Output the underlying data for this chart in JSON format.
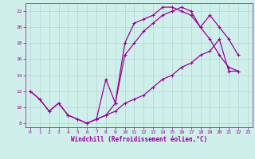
{
  "xlabel": "Windchill (Refroidissement éolien,°C)",
  "bg_color": "#cff0ea",
  "line_color": "#990099",
  "grid_color": "#aacccc",
  "xlim": [
    -0.5,
    23.5
  ],
  "ylim": [
    7.5,
    23
  ],
  "xticks": [
    0,
    1,
    2,
    3,
    4,
    5,
    6,
    7,
    8,
    9,
    10,
    11,
    12,
    13,
    14,
    15,
    16,
    17,
    18,
    19,
    20,
    21,
    22,
    23
  ],
  "yticks": [
    8,
    10,
    12,
    14,
    16,
    18,
    20,
    22
  ],
  "series1_x": [
    0,
    1,
    2,
    3,
    4,
    5,
    6,
    7,
    8,
    9,
    10,
    11,
    12,
    13,
    14,
    15,
    16,
    17,
    18,
    19,
    20,
    21,
    22
  ],
  "series1_y": [
    12,
    11,
    9.5,
    10.5,
    9.0,
    8.5,
    8.0,
    8.5,
    9.0,
    10.5,
    18.0,
    20.5,
    21.0,
    21.5,
    22.5,
    22.5,
    22.0,
    21.5,
    20.0,
    18.5,
    16.5,
    15.0,
    14.5
  ],
  "series2_x": [
    0,
    1,
    2,
    3,
    4,
    5,
    6,
    7,
    8,
    9,
    10,
    11,
    12,
    13,
    14,
    15,
    16,
    17,
    18,
    19,
    20,
    21,
    22
  ],
  "series2_y": [
    12,
    11,
    9.5,
    10.5,
    9.0,
    8.5,
    8.0,
    8.5,
    9.0,
    9.5,
    10.5,
    11.0,
    11.5,
    12.5,
    13.5,
    14.0,
    15.0,
    15.5,
    16.5,
    17.0,
    18.5,
    14.5,
    14.5
  ],
  "series3_x": [
    7,
    8,
    9,
    10,
    11,
    12,
    13,
    14,
    15,
    16,
    17,
    18,
    19,
    20,
    21,
    22
  ],
  "series3_y": [
    8.5,
    13.5,
    10.5,
    16.5,
    18.0,
    19.5,
    20.5,
    21.5,
    22.0,
    22.5,
    22.0,
    20.0,
    21.5,
    20.0,
    18.5,
    16.5
  ],
  "marker": "+",
  "linewidth": 0.9,
  "markersize": 3.5,
  "tick_fontsize": 4.5,
  "xlabel_fontsize": 5.5
}
